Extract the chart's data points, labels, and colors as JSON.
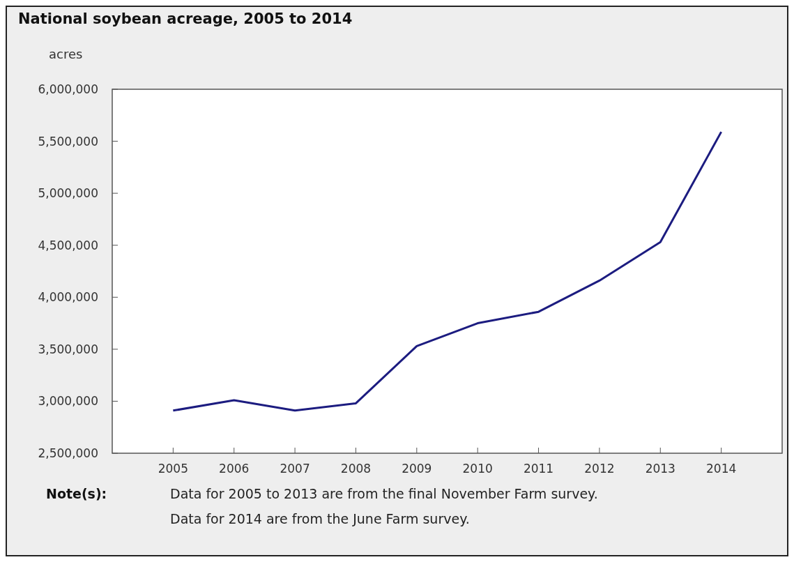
{
  "chart_data": {
    "type": "line",
    "title": "National soybean acreage, 2005 to 2014",
    "ylabel": "acres",
    "categories": [
      "2005",
      "2006",
      "2007",
      "2008",
      "2009",
      "2010",
      "2011",
      "2012",
      "2013",
      "2014"
    ],
    "series": [
      {
        "color": "#1c1c80",
        "values": [
          2910000,
          3010000,
          2910000,
          2980000,
          3530000,
          3750000,
          3860000,
          4160000,
          4530000,
          5590000
        ]
      }
    ],
    "ylim": [
      2500000,
      6000000
    ],
    "yticks": [
      {
        "value": 2500000,
        "label": "2,500,000"
      },
      {
        "value": 3000000,
        "label": "3,000,000"
      },
      {
        "value": 3500000,
        "label": "3,500,000"
      },
      {
        "value": 4000000,
        "label": "4,000,000"
      },
      {
        "value": 4500000,
        "label": "4,500,000"
      },
      {
        "value": 5000000,
        "label": "5,000,000"
      },
      {
        "value": 5500000,
        "label": "5,500,000"
      },
      {
        "value": 6000000,
        "label": "6,000,000"
      }
    ],
    "grid": false,
    "annotations": [
      "Note(s):",
      "Data for 2005 to 2013 are from the final November Farm survey.",
      "Data for 2014 are from the June Farm survey."
    ]
  }
}
